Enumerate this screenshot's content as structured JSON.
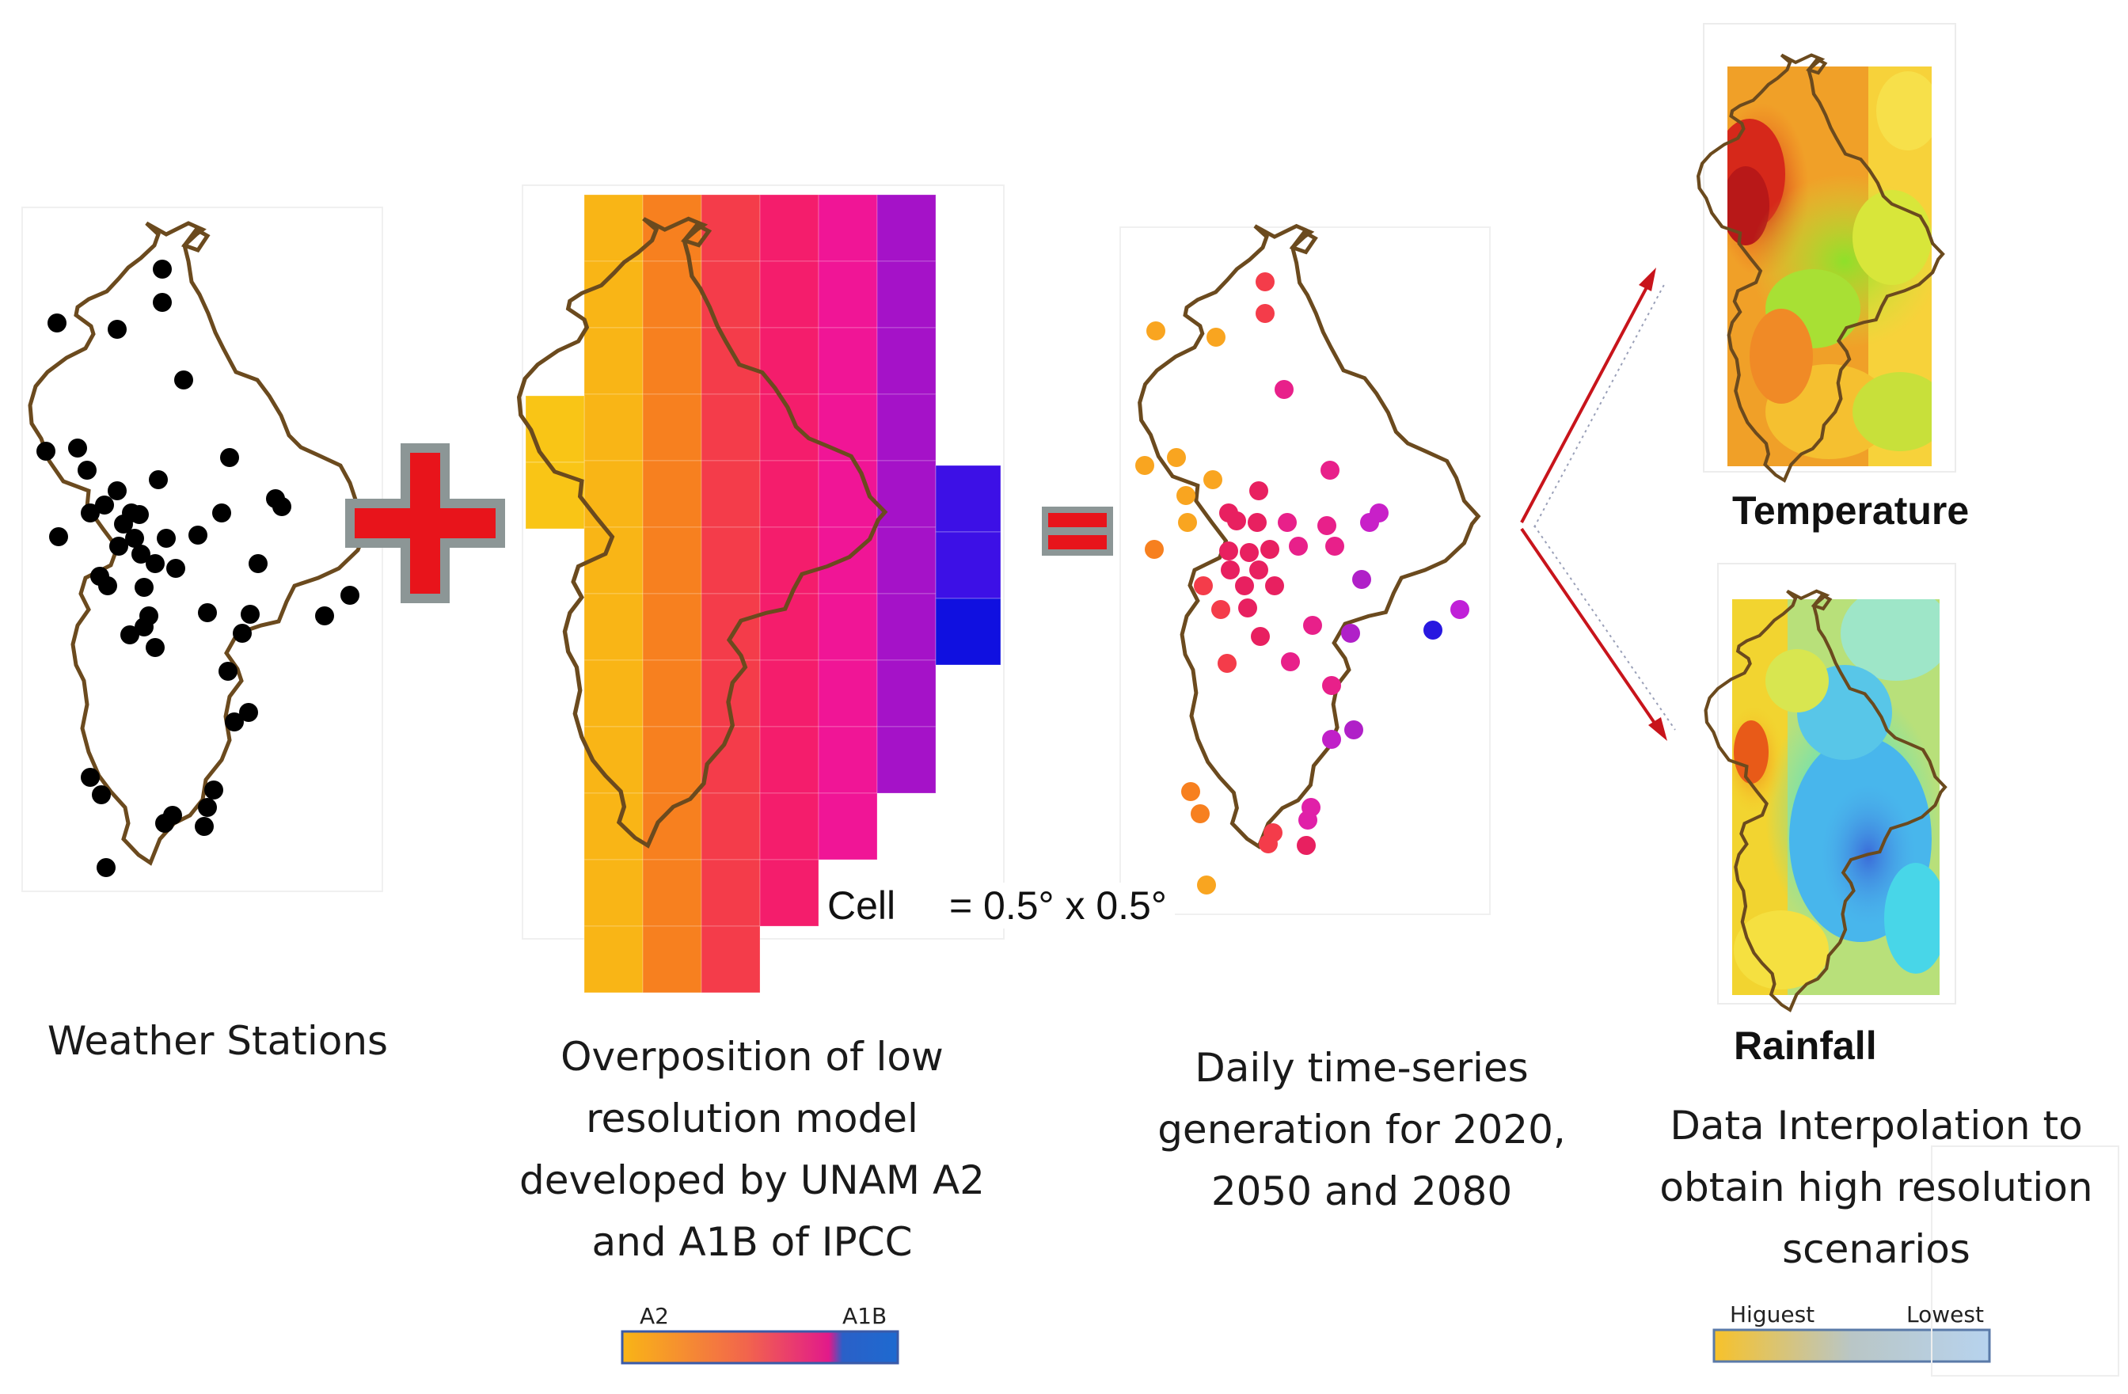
{
  "panels": {
    "stations": {
      "caption": "Weather Stations"
    },
    "model": {
      "caption": "Overposition of low\nresolution model\ndeveloped by UNAM A2\nand A1B of IPCC",
      "cell_label_prefix": "Cell",
      "cell_label_value": "= 0.5° x 0.5°",
      "legend": {
        "left": "A2",
        "right": "A1B"
      }
    },
    "timeseries": {
      "caption": "Daily time-series\ngeneration for 2020,\n2050 and 2080"
    },
    "interpolation": {
      "temperature_label": "Temperature",
      "rainfall_label": "Rainfall",
      "caption": "Data Interpolation to\nobtain high resolution\nscenarios",
      "legend": {
        "left": "Higuest",
        "right": "Lowest"
      }
    }
  },
  "operators": {
    "plus": "+",
    "equals": "="
  },
  "colors": {
    "outline": "#6b4a1e",
    "station": "#000000",
    "operator_fill": "#e8141b",
    "operator_border": "#8c9696",
    "arrow": "#c8141b",
    "grid_columns": [
      "#f9b516",
      "#f7801f",
      "#f43c4a",
      "#f41d6c",
      "#f01596",
      "#a512c8",
      "#3d10e6"
    ]
  }
}
